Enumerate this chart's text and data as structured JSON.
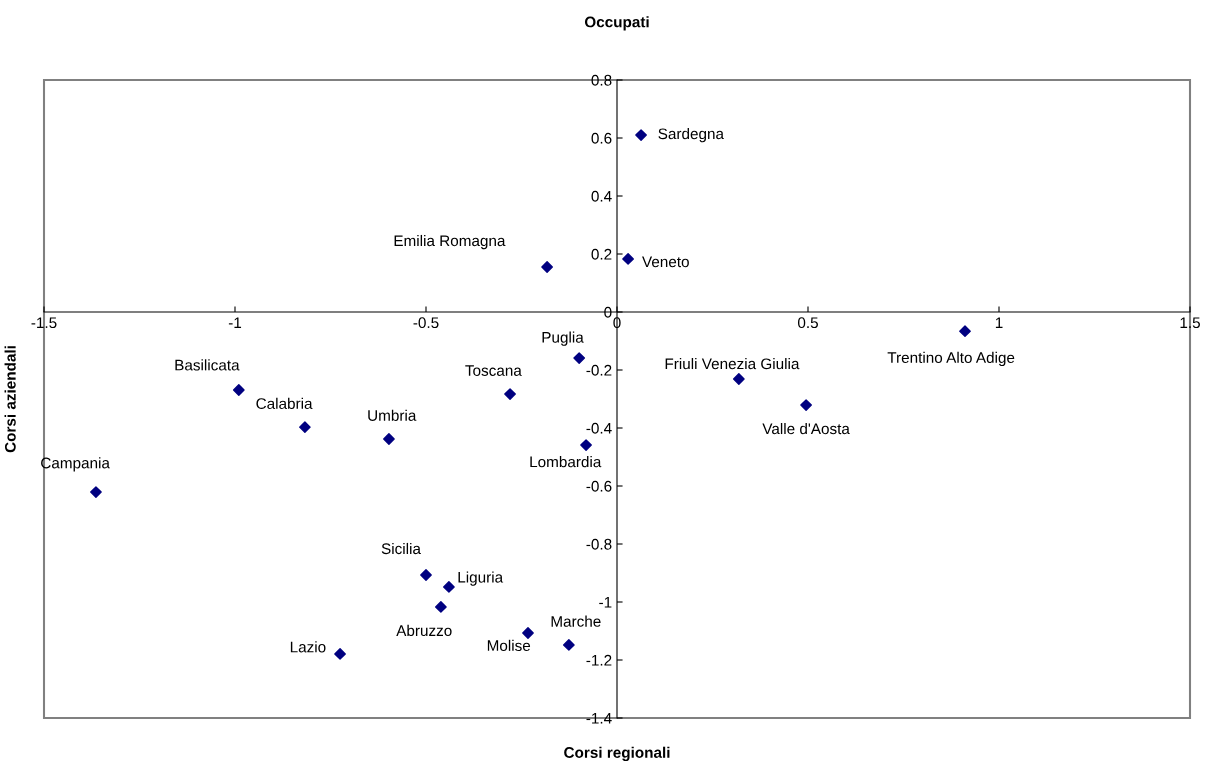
{
  "chart_data": {
    "type": "scatter",
    "title": "Occupati",
    "xlabel": "Corsi regionali",
    "ylabel": "Corsi aziendali",
    "x": [
      0.063,
      -0.183,
      0.029,
      0.911,
      -0.099,
      0.319,
      0.495,
      -0.99,
      -0.28,
      -0.817,
      -0.597,
      -0.081,
      -1.364,
      -0.5,
      -0.44,
      -0.461,
      -0.233,
      -0.126,
      -0.725
    ],
    "series": [
      {
        "color": "#000080",
        "values": [
          0.61,
          0.155,
          0.183,
          -0.066,
          -0.159,
          -0.231,
          -0.321,
          -0.269,
          -0.283,
          -0.397,
          -0.438,
          -0.459,
          -0.621,
          -0.907,
          -0.948,
          -1.017,
          -1.107,
          -1.148,
          -1.179
        ]
      }
    ],
    "marker": "diamond",
    "grid": false,
    "legend": false,
    "xlim": [
      -1.5,
      1.5
    ],
    "xticks": [
      -1.5,
      -1,
      -0.5,
      0,
      0.5,
      1,
      1.5
    ],
    "ylim": [
      -1.4,
      0.8
    ],
    "yticks": [
      -1.4,
      -1.2,
      -1,
      -0.8,
      -0.6,
      -0.4,
      -0.2,
      0,
      0.2,
      0.4,
      0.6,
      0.8
    ],
    "annotations": [
      {
        "text": "Sardegna",
        "x": 0.063,
        "y": 0.61
      },
      {
        "text": "Emilia Romagna",
        "x": -0.183,
        "y": 0.155
      },
      {
        "text": "Veneto",
        "x": 0.029,
        "y": 0.183
      },
      {
        "text": "Trentino Alto Adige",
        "x": 0.911,
        "y": -0.066
      },
      {
        "text": "Puglia",
        "x": -0.099,
        "y": -0.159
      },
      {
        "text": "Friuli Venezia Giulia",
        "x": 0.319,
        "y": -0.231
      },
      {
        "text": "Valle d'Aosta",
        "x": 0.495,
        "y": -0.321
      },
      {
        "text": "Basilicata",
        "x": -0.99,
        "y": -0.269
      },
      {
        "text": "Toscana",
        "x": -0.28,
        "y": -0.283
      },
      {
        "text": "Calabria",
        "x": -0.817,
        "y": -0.397
      },
      {
        "text": "Umbria",
        "x": -0.597,
        "y": -0.438
      },
      {
        "text": "Lombardia",
        "x": -0.081,
        "y": -0.459
      },
      {
        "text": "Campania",
        "x": -1.364,
        "y": -0.621
      },
      {
        "text": "Sicilia",
        "x": -0.5,
        "y": -0.907
      },
      {
        "text": "Liguria",
        "x": -0.44,
        "y": -0.948
      },
      {
        "text": "Abruzzo",
        "x": -0.461,
        "y": -1.017
      },
      {
        "text": "Molise",
        "x": -0.233,
        "y": -1.107
      },
      {
        "text": "Marche",
        "x": -0.126,
        "y": -1.148
      },
      {
        "text": "Lazio",
        "x": -0.725,
        "y": -1.179
      }
    ]
  }
}
